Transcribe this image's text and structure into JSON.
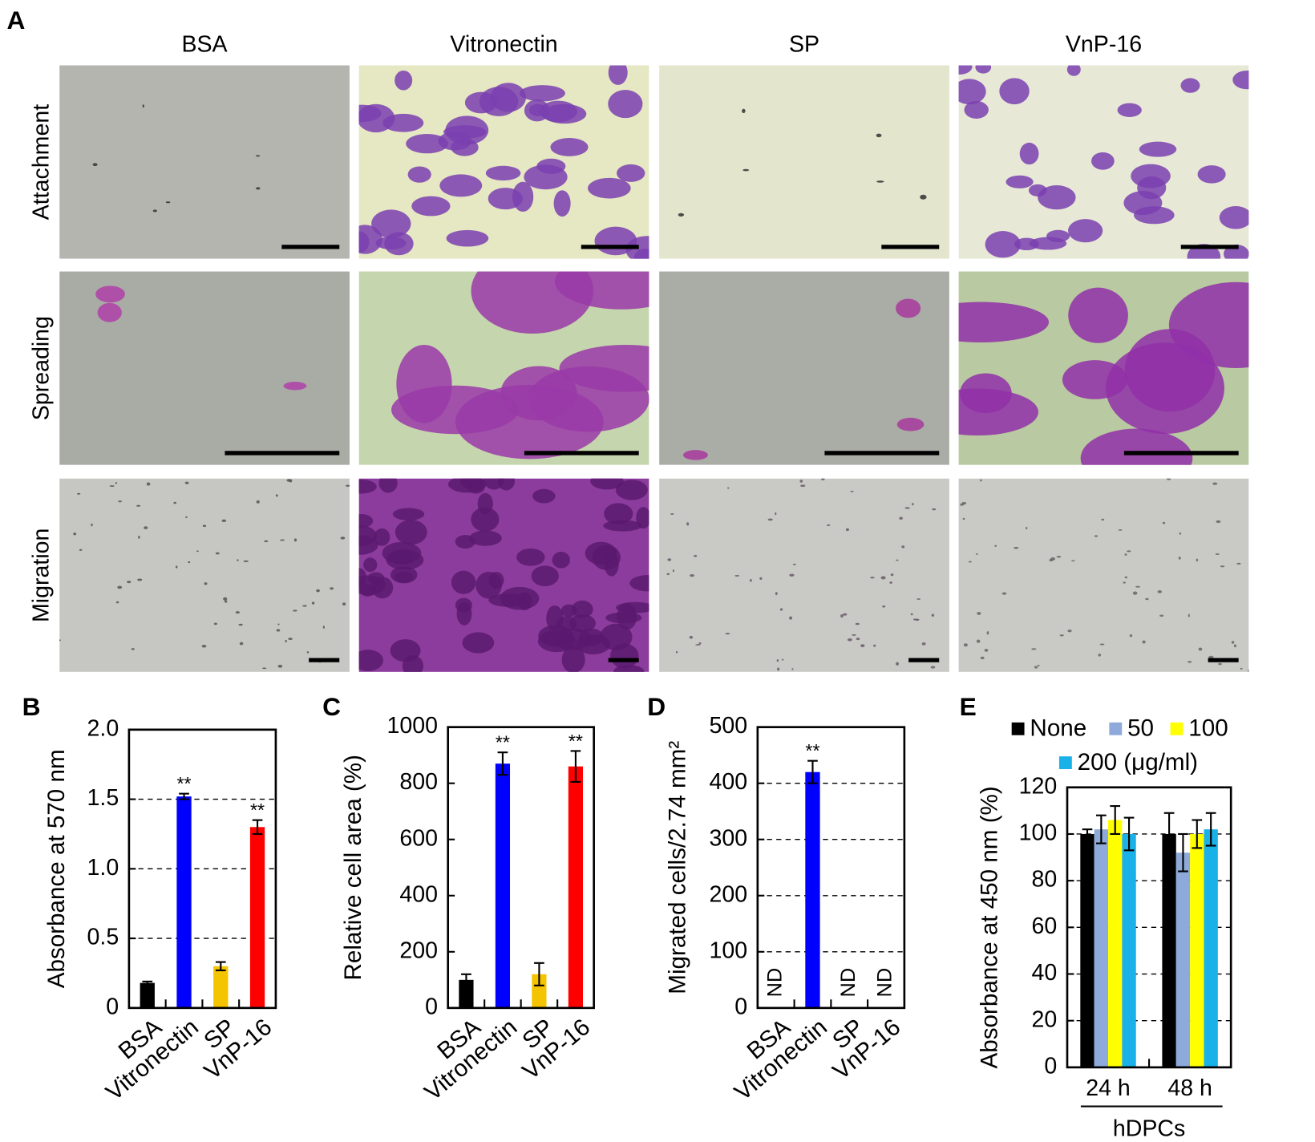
{
  "panel_a": {
    "label": "A",
    "columns": [
      "BSA",
      "Vitronectin",
      "SP",
      "VnP-16"
    ],
    "rows": [
      "Attachment",
      "Spreading",
      "Migration"
    ]
  },
  "chart_data": [
    {
      "type": "bar",
      "label": "B",
      "y_label": "Absorbance at 570 nm",
      "categories": [
        "BSA",
        "Vitronectin",
        "SP",
        "VnP-16"
      ],
      "values": [
        0.18,
        1.52,
        0.3,
        1.3
      ],
      "errors": [
        0.01,
        0.02,
        0.03,
        0.05
      ],
      "colors": [
        "#000000",
        "#0000ff",
        "#f5c400",
        "#ff0000"
      ],
      "significance": [
        null,
        "**",
        null,
        "**"
      ],
      "ylim": [
        0,
        2
      ],
      "yticks": [
        0,
        0.5,
        {
          "value": 1,
          "label": "1.0"
        },
        1.5,
        {
          "value": 2,
          "label": "2.0"
        }
      ],
      "grid": true
    },
    {
      "type": "bar",
      "label": "C",
      "y_label": "Relative cell area (%)",
      "categories": [
        "BSA",
        "Vitronectin",
        "SP",
        "VnP-16"
      ],
      "values": [
        100,
        870,
        120,
        860
      ],
      "errors": [
        20,
        40,
        40,
        55
      ],
      "colors": [
        "#000000",
        "#0000ff",
        "#f5c400",
        "#ff0000"
      ],
      "significance": [
        null,
        "**",
        null,
        "**"
      ],
      "ylim": [
        0,
        1000
      ],
      "yticks": [
        0,
        200,
        400,
        600,
        800,
        1000
      ],
      "grid": false
    },
    {
      "type": "bar",
      "label": "D",
      "y_label": "Migrated cells/2.74 mm²",
      "categories": [
        "BSA",
        "Vitronectin",
        "SP",
        "VnP-16"
      ],
      "values": [
        null,
        420,
        null,
        null
      ],
      "value_labels": [
        "ND",
        null,
        "ND",
        "ND"
      ],
      "errors": [
        null,
        20,
        null,
        null
      ],
      "colors": [
        "#000000",
        "#0000ff",
        "#f5c400",
        "#ff0000"
      ],
      "significance": [
        null,
        "**",
        null,
        null
      ],
      "ylim": [
        0,
        500
      ],
      "yticks": [
        0,
        100,
        200,
        300,
        400,
        500
      ],
      "grid": true
    },
    {
      "type": "bar",
      "label": "E",
      "y_label": "Absorbance at 450 nm (%)",
      "x_label": "hDPCs",
      "categories": [
        "24 h",
        "48 h"
      ],
      "series": [
        {
          "name": "None",
          "color": "#000000",
          "values": [
            100,
            100
          ],
          "errors": [
            2,
            9
          ]
        },
        {
          "name": "50",
          "color": "#8eaadb",
          "values": [
            102,
            92
          ],
          "errors": [
            6,
            8
          ]
        },
        {
          "name": "100",
          "color": "#ffff00",
          "values": [
            106,
            100
          ],
          "errors": [
            6,
            6
          ]
        },
        {
          "name": "200 (μg/ml)",
          "color": "#1ab0e8",
          "values": [
            100,
            102
          ],
          "errors": [
            7,
            7
          ]
        }
      ],
      "ylim": [
        0,
        120
      ],
      "yticks": [
        0,
        20,
        40,
        60,
        80,
        100,
        120
      ],
      "grid": true
    }
  ]
}
